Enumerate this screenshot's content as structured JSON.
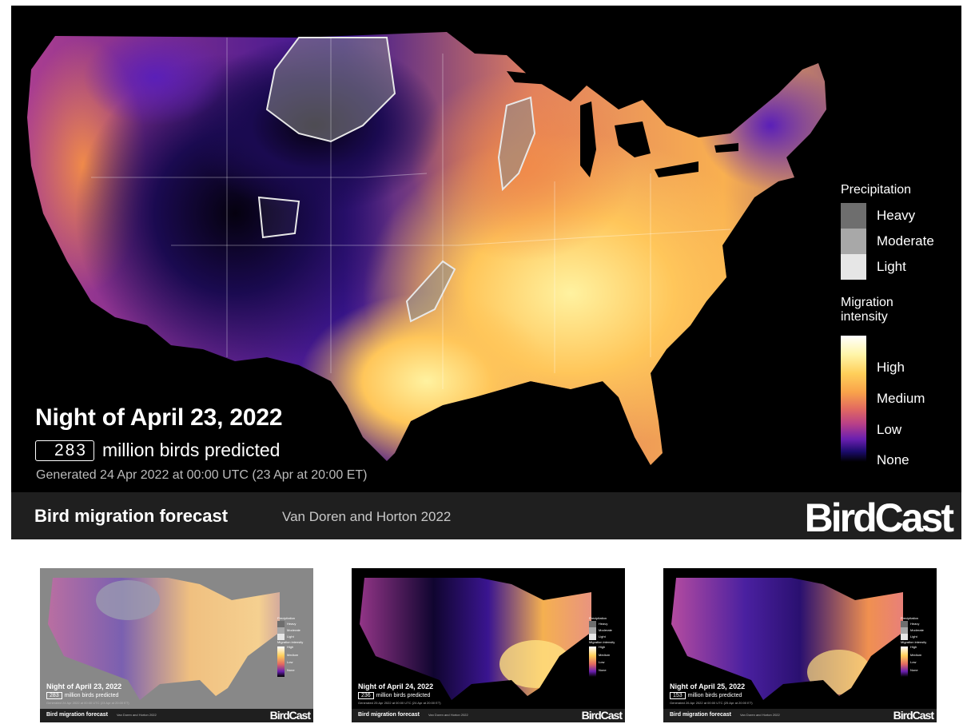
{
  "main": {
    "night_title": "Night of April 23, 2022",
    "bird_count": "283",
    "count_suffix": "million birds predicted",
    "generated": "Generated 24 Apr 2022 at 00:00 UTC (23 Apr at 20:00 ET)",
    "precip_legend": {
      "title": "Precipitation",
      "items": [
        {
          "label": "Heavy",
          "color": "#6e6e6e"
        },
        {
          "label": "Moderate",
          "color": "#a8a8a8"
        },
        {
          "label": "Light",
          "color": "#e6e6e6"
        }
      ]
    },
    "migration_legend": {
      "title_line1": "Migration",
      "title_line2": "intensity",
      "high": "High",
      "medium": "Medium",
      "low": "Low",
      "none": "None"
    },
    "footer": {
      "title": "Bird migration forecast",
      "credit": "Van Doren and Horton 2022",
      "logo": "BirdCast"
    }
  },
  "thumbnails": [
    {
      "night_title": "Night of April 23, 2022",
      "bird_count": "283",
      "count_suffix": "million birds predicted",
      "generated": "Generated 24 Apr 2022 at 00:00 UTC (23 Apr at 20:00 ET)",
      "footer_title": "Bird migration forecast",
      "credit": "Van Doren and Horton 2022",
      "logo": "BirdCast",
      "faded": true
    },
    {
      "night_title": "Night of April 24, 2022",
      "bird_count": "236",
      "count_suffix": "million birds predicted",
      "generated": "Generated 25 Apr 2022 at 00:00 UTC (24 Apr at 20:00 ET)",
      "footer_title": "Bird migration forecast",
      "credit": "Van Doren and Horton 2022",
      "logo": "BirdCast",
      "faded": false
    },
    {
      "night_title": "Night of April 25, 2022",
      "bird_count": "153",
      "count_suffix": "million birds predicted",
      "generated": "Generated 26 Apr 2022 at 00:00 UTC (25 Apr at 20:00 ET)",
      "footer_title": "Bird migration forecast",
      "credit": "Van Doren and Horton 2022",
      "logo": "BirdCast",
      "faded": false
    }
  ],
  "thumb_legend": {
    "precip": "Precipitation",
    "heavy": "Heavy",
    "moderate": "Moderate",
    "light": "Light",
    "migration": "Migration intensity",
    "high": "High",
    "medium": "Medium",
    "low": "Low",
    "none": "None"
  }
}
